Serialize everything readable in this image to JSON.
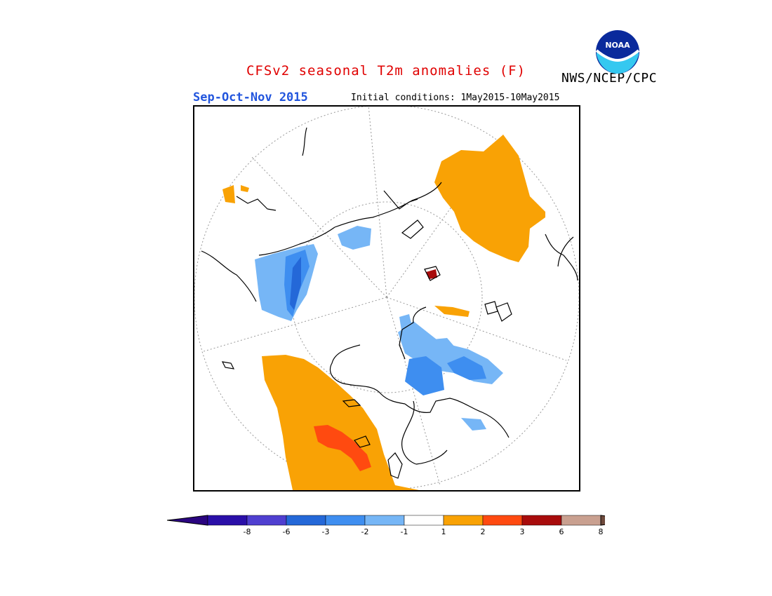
{
  "title": "CFSv2 seasonal T2m anomalies (F)",
  "agency": "NWS/NCEP/CPC",
  "season": "Sep-Oct-Nov 2015",
  "initial_conditions": "Initial conditions: 1May2015-10May2015",
  "logo_text": "NOAA",
  "colors": {
    "title": "#e00000",
    "season": "#2255dd",
    "land_outline": "#000000",
    "grid": "#999999"
  },
  "legend": {
    "bins": [
      {
        "label": "-8",
        "color": "#2a0fa8"
      },
      {
        "label": "-6",
        "color": "#4f3fd0"
      },
      {
        "label": "-3",
        "color": "#2468d8"
      },
      {
        "label": "-2",
        "color": "#3e8ef0"
      },
      {
        "label": "-1",
        "color": "#76b6f6"
      },
      {
        "label": "1",
        "color": "#ffffff"
      },
      {
        "label": "2",
        "color": "#f9a205"
      },
      {
        "label": "3",
        "color": "#ff4a10"
      },
      {
        "label": "6",
        "color": "#a80c0c"
      },
      {
        "label": "8",
        "color": "#c9a090"
      }
    ],
    "min_arrow_color": "#2a0480",
    "max_arrow_color": "#6e4a3c"
  }
}
